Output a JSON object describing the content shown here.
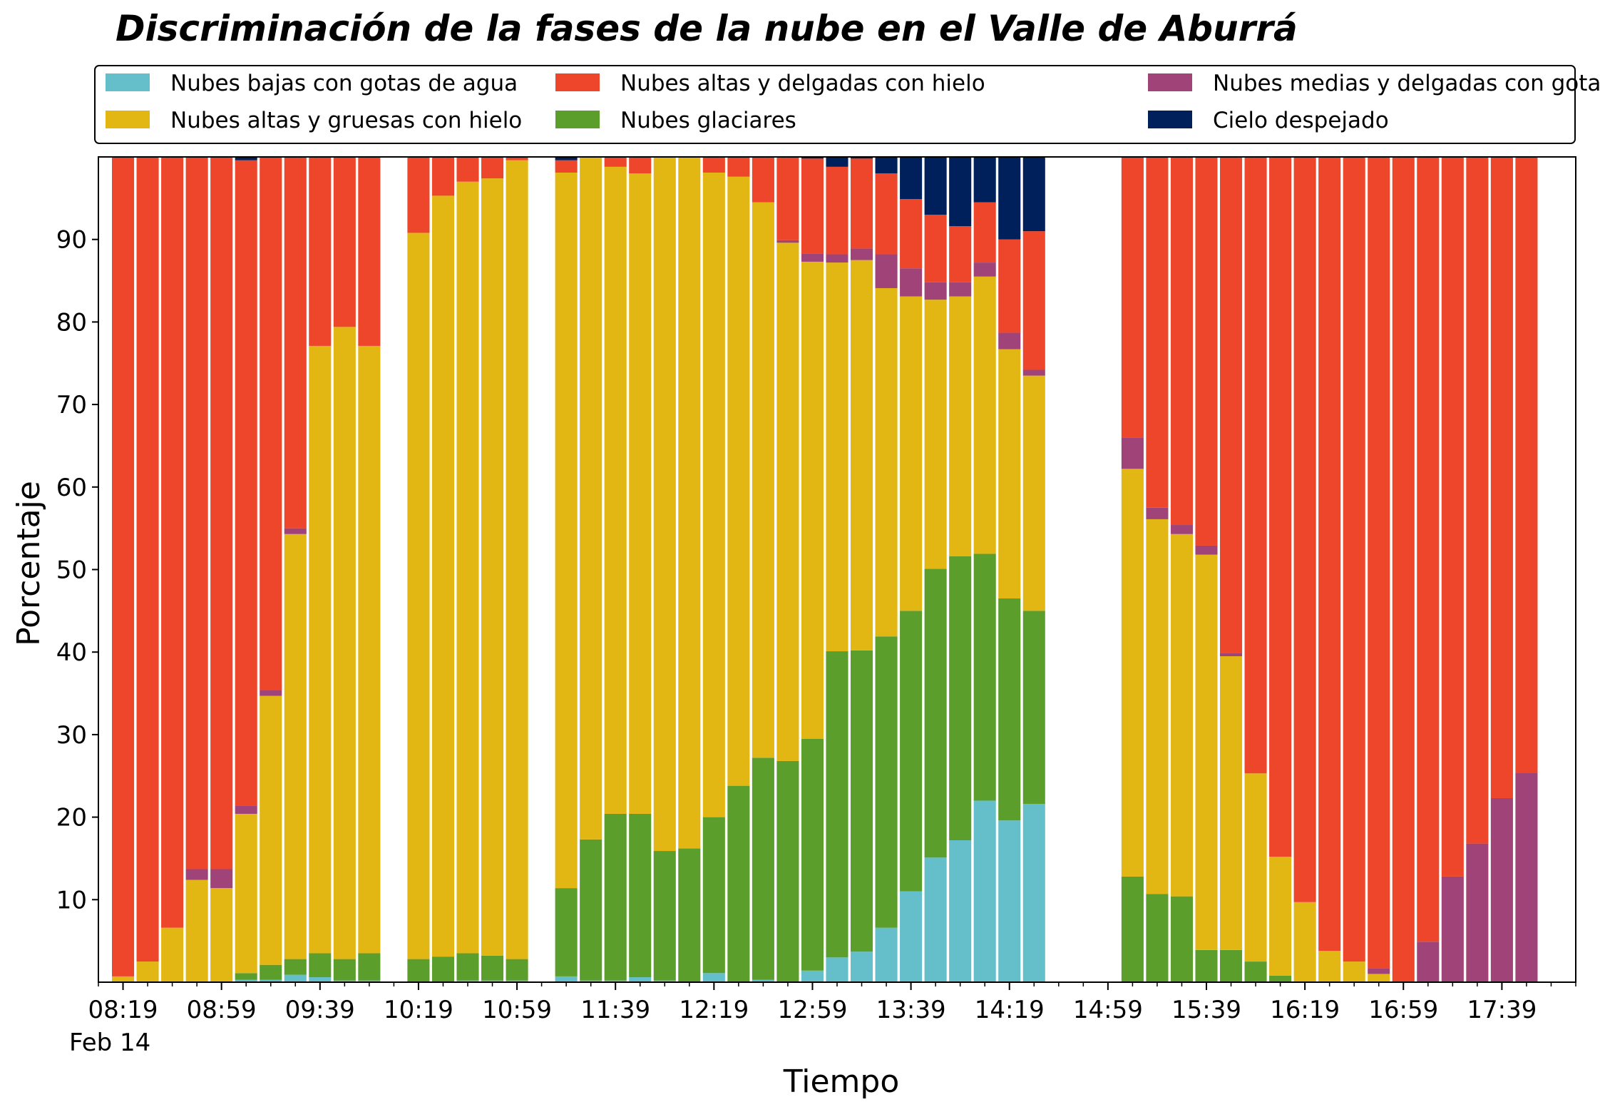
{
  "chart_data": {
    "type": "bar",
    "stacked": true,
    "title": "Discriminación de la fases de la nube en el Valle de Aburrá",
    "xlabel": "Tiempo",
    "ylabel": "Porcentaje",
    "date_label": "Feb 14",
    "ylim": [
      0,
      100
    ],
    "yticks": [
      10,
      20,
      30,
      40,
      50,
      60,
      70,
      80,
      90
    ],
    "x_range": [
      "08:09",
      "18:09"
    ],
    "bar_interval_minutes": 10,
    "xticks": [
      "08:19",
      "08:59",
      "09:39",
      "10:19",
      "10:59",
      "11:39",
      "12:19",
      "12:59",
      "13:39",
      "14:19",
      "14:59",
      "15:39",
      "16:19",
      "16:59",
      "17:39"
    ],
    "minor_tick_interval_minutes": 10,
    "legend_placement": "top",
    "grid": false,
    "series": [
      {
        "name": "Nubes bajas con gotas de agua",
        "color": "#64bfcb"
      },
      {
        "name": "Nubes altas y gruesas con hielo",
        "color": "#e2b714"
      },
      {
        "name": "Nubes altas y delgadas con hielo",
        "color": "#ee462b"
      },
      {
        "name": "Nubes glaciares",
        "color": "#5c9e2c"
      },
      {
        "name": "Nubes medias y delgadas con gotas de agua",
        "color": "#a04378"
      },
      {
        "name": "Cielo despejado",
        "color": "#00205c"
      }
    ],
    "stack_order": [
      "Nubes bajas con gotas de agua",
      "Nubes glaciares",
      "Nubes altas y gruesas con hielo",
      "Nubes medias y delgadas con gotas de agua",
      "Nubes altas y delgadas con hielo",
      "Cielo despejado"
    ],
    "bars": [
      {
        "time": "08:19",
        "values": [
          0,
          0,
          0.7,
          0,
          99.3,
          0
        ]
      },
      {
        "time": "08:29",
        "values": [
          0,
          0,
          2.5,
          0,
          97.5,
          0
        ]
      },
      {
        "time": "08:39",
        "values": [
          0,
          0,
          6.6,
          0,
          93.4,
          0
        ]
      },
      {
        "time": "08:49",
        "values": [
          0,
          0,
          12.4,
          1.3,
          86.3,
          0
        ]
      },
      {
        "time": "08:59",
        "values": [
          0,
          0,
          11.4,
          2.3,
          86.3,
          0
        ]
      },
      {
        "time": "09:09",
        "values": [
          0.3,
          0.8,
          19.3,
          1.0,
          78.2,
          0.4
        ]
      },
      {
        "time": "09:19",
        "values": [
          0.3,
          1.8,
          32.6,
          0.7,
          64.6,
          0
        ]
      },
      {
        "time": "09:29",
        "values": [
          0.9,
          1.9,
          51.5,
          0.7,
          45.0,
          0
        ]
      },
      {
        "time": "09:39",
        "values": [
          0.6,
          2.9,
          73.6,
          0,
          22.9,
          0
        ]
      },
      {
        "time": "09:49",
        "values": [
          0.2,
          2.6,
          76.6,
          0,
          20.6,
          0
        ]
      },
      {
        "time": "09:59",
        "values": [
          0.2,
          3.3,
          73.6,
          0,
          22.9,
          0
        ]
      },
      {
        "time": "10:19",
        "values": [
          0,
          2.8,
          88.0,
          0,
          9.2,
          0
        ]
      },
      {
        "time": "10:29",
        "values": [
          0,
          3.1,
          92.2,
          0,
          4.7,
          0
        ]
      },
      {
        "time": "10:39",
        "values": [
          0.2,
          3.3,
          93.5,
          0,
          3.0,
          0
        ]
      },
      {
        "time": "10:49",
        "values": [
          0.2,
          3.0,
          94.2,
          0,
          2.6,
          0
        ]
      },
      {
        "time": "10:59",
        "values": [
          0.2,
          2.6,
          96.8,
          0,
          0.4,
          0
        ]
      },
      {
        "time": "11:19",
        "values": [
          0.7,
          10.7,
          86.7,
          0,
          1.5,
          0.4
        ]
      },
      {
        "time": "11:29",
        "values": [
          0.2,
          17.1,
          82.6,
          0,
          0.1,
          0
        ]
      },
      {
        "time": "11:39",
        "values": [
          0.2,
          20.2,
          78.4,
          0,
          1.2,
          0
        ]
      },
      {
        "time": "11:49",
        "values": [
          0.6,
          19.8,
          77.6,
          0,
          2.0,
          0
        ]
      },
      {
        "time": "11:59",
        "values": [
          0.2,
          15.7,
          84.1,
          0,
          0,
          0
        ]
      },
      {
        "time": "12:09",
        "values": [
          0,
          16.2,
          83.9,
          0,
          0,
          0
        ]
      },
      {
        "time": "12:19",
        "values": [
          1.1,
          18.9,
          78.1,
          0,
          1.9,
          0
        ]
      },
      {
        "time": "12:29",
        "values": [
          0,
          23.8,
          73.8,
          0,
          2.4,
          0
        ]
      },
      {
        "time": "12:39",
        "values": [
          0.3,
          26.9,
          67.3,
          0,
          5.5,
          0
        ]
      },
      {
        "time": "12:49",
        "values": [
          0,
          26.8,
          62.8,
          0.3,
          10.1,
          0
        ]
      },
      {
        "time": "12:59",
        "values": [
          1.4,
          28.1,
          57.8,
          1.0,
          11.5,
          0.2
        ]
      },
      {
        "time": "13:09",
        "values": [
          3.0,
          37.1,
          47.1,
          1.0,
          10.6,
          1.2
        ]
      },
      {
        "time": "13:19",
        "values": [
          3.7,
          36.5,
          47.3,
          1.4,
          10.9,
          0.2
        ]
      },
      {
        "time": "13:29",
        "values": [
          6.6,
          35.3,
          42.2,
          4.1,
          9.8,
          2.0
        ]
      },
      {
        "time": "13:39",
        "values": [
          11.0,
          34.0,
          38.1,
          3.4,
          8.4,
          5.1
        ]
      },
      {
        "time": "13:49",
        "values": [
          15.1,
          35.0,
          32.6,
          2.1,
          8.2,
          7.0
        ]
      },
      {
        "time": "13:59",
        "values": [
          17.2,
          34.4,
          31.5,
          1.7,
          6.8,
          8.4
        ]
      },
      {
        "time": "14:09",
        "values": [
          22.0,
          29.9,
          33.6,
          1.7,
          7.3,
          5.5
        ]
      },
      {
        "time": "14:19",
        "values": [
          19.6,
          26.9,
          30.2,
          2.0,
          11.3,
          10.0
        ]
      },
      {
        "time": "14:29",
        "values": [
          21.6,
          23.4,
          28.5,
          0.7,
          16.8,
          9.0
        ]
      },
      {
        "time": "15:09",
        "values": [
          0,
          12.8,
          49.4,
          3.8,
          34.0,
          0
        ]
      },
      {
        "time": "15:19",
        "values": [
          0,
          10.7,
          45.4,
          1.4,
          42.5,
          0
        ]
      },
      {
        "time": "15:29",
        "values": [
          0,
          10.4,
          43.9,
          1.1,
          44.6,
          0
        ]
      },
      {
        "time": "15:39",
        "values": [
          0,
          3.9,
          47.9,
          1.1,
          47.1,
          0
        ]
      },
      {
        "time": "15:49",
        "values": [
          0,
          3.9,
          35.6,
          0.4,
          60.1,
          0
        ]
      },
      {
        "time": "15:59",
        "values": [
          0,
          2.5,
          22.8,
          0,
          74.7,
          0
        ]
      },
      {
        "time": "16:09",
        "values": [
          0,
          0.8,
          14.4,
          0,
          84.8,
          0
        ]
      },
      {
        "time": "16:19",
        "values": [
          0,
          0,
          9.7,
          0,
          90.3,
          0
        ]
      },
      {
        "time": "16:29",
        "values": [
          0,
          0,
          3.8,
          0,
          96.2,
          0
        ]
      },
      {
        "time": "16:39",
        "values": [
          0,
          0,
          2.5,
          0,
          97.5,
          0
        ]
      },
      {
        "time": "16:49",
        "values": [
          0,
          0,
          1.0,
          0.7,
          98.3,
          0
        ]
      },
      {
        "time": "16:59",
        "values": [
          0,
          0,
          0,
          0,
          100,
          0
        ]
      },
      {
        "time": "17:09",
        "values": [
          0,
          0,
          0,
          4.9,
          95.1,
          0
        ]
      },
      {
        "time": "17:19",
        "values": [
          0,
          0,
          0,
          12.8,
          87.2,
          0
        ]
      },
      {
        "time": "17:29",
        "values": [
          0,
          0,
          0,
          16.8,
          83.2,
          0
        ]
      },
      {
        "time": "17:39",
        "values": [
          0,
          0,
          0,
          22.3,
          77.7,
          0
        ]
      },
      {
        "time": "17:49",
        "values": [
          0,
          0,
          0,
          25.4,
          74.6,
          0
        ]
      }
    ]
  }
}
